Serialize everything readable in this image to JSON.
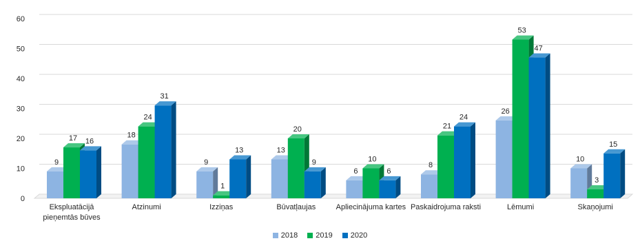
{
  "chart_data": {
    "type": "bar",
    "categories": [
      [
        "Ekspluatācijā",
        "pieņemtās būves"
      ],
      [
        "Atzinumi"
      ],
      [
        "Izziņas"
      ],
      [
        "Būvatļaujas"
      ],
      [
        "Apliecinājuma kartes"
      ],
      [
        "Paskaidrojuma raksti"
      ],
      [
        "Lēmumi"
      ],
      [
        "Skaņojumi"
      ]
    ],
    "series": [
      {
        "name": "2018",
        "color": "#8DB4E2",
        "values": [
          9,
          18,
          9,
          13,
          6,
          8,
          26,
          10
        ]
      },
      {
        "name": "2019",
        "color": "#00B050",
        "values": [
          17,
          24,
          1,
          20,
          10,
          21,
          53,
          3
        ]
      },
      {
        "name": "2020",
        "color": "#0070C0",
        "values": [
          16,
          31,
          13,
          9,
          6,
          24,
          47,
          15
        ]
      }
    ],
    "ylim": [
      0,
      60
    ],
    "yticks": [
      0,
      10,
      20,
      30,
      40,
      50,
      60
    ],
    "grid": true,
    "legend": "bottom-center",
    "style": "3d-columns",
    "data_labels": true
  }
}
